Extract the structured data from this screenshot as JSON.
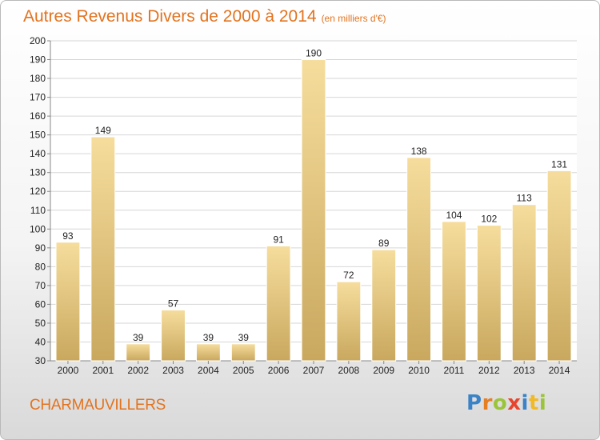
{
  "title": {
    "main": "Autres Revenus Divers de 2000 à 2014",
    "unit": "(en milliers d'€)"
  },
  "location": "CHARMAUVILLERS",
  "logo": {
    "text": "Proxiti",
    "letters": [
      "P",
      "r",
      "o",
      "x",
      "i",
      "t",
      "i"
    ]
  },
  "colors": {
    "title": "#e2731f",
    "bar_light": "#f6dd9d",
    "bar_dark": "#c9a85e"
  },
  "chart_data": {
    "type": "bar",
    "categories": [
      "2000",
      "2001",
      "2002",
      "2003",
      "2004",
      "2005",
      "2006",
      "2007",
      "2008",
      "2009",
      "2010",
      "2011",
      "2012",
      "2013",
      "2014"
    ],
    "values": [
      93,
      149,
      39,
      57,
      39,
      39,
      91,
      190,
      72,
      89,
      138,
      104,
      102,
      113,
      131
    ],
    "ylim": [
      30,
      200
    ],
    "yticks": [
      30,
      40,
      50,
      60,
      70,
      80,
      90,
      100,
      110,
      120,
      130,
      140,
      150,
      160,
      170,
      180,
      190,
      200
    ],
    "grid": true,
    "xlabel": "",
    "ylabel": ""
  }
}
